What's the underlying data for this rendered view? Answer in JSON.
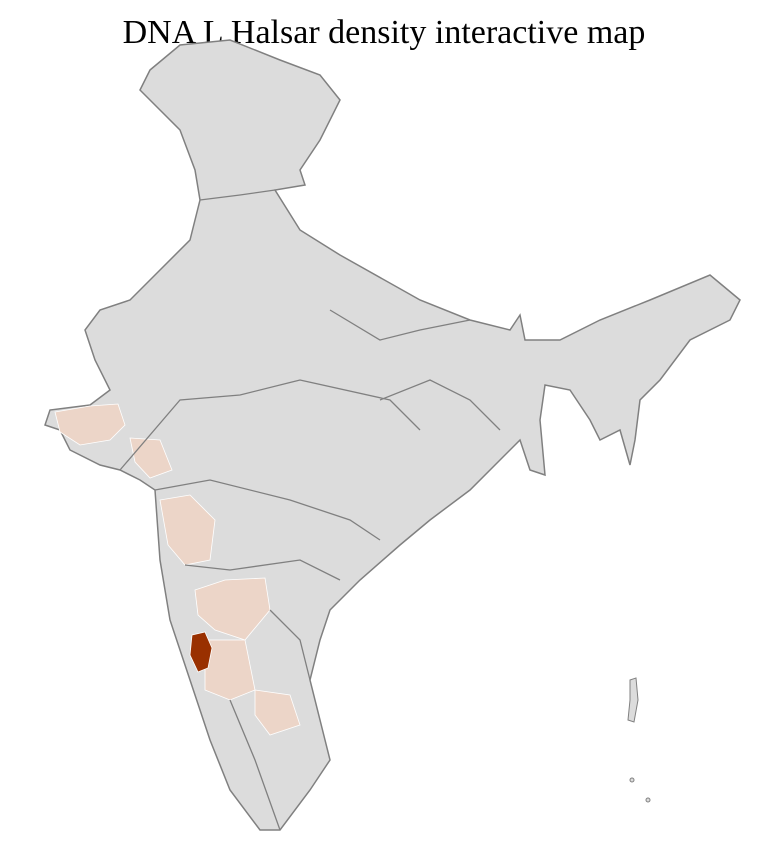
{
  "title": "DNA L Halsar density interactive map",
  "colors": {
    "no_data": "#dcdcdc",
    "low_density": "#ecd5c8",
    "high_density": "#993000",
    "district_border": "#ffffff",
    "state_border": "#808080"
  },
  "regions": [
    {
      "name": "kutch",
      "level": "low"
    },
    {
      "name": "north-gujarat",
      "level": "low"
    },
    {
      "name": "konkan-maharashtra",
      "level": "low"
    },
    {
      "name": "north-karnataka",
      "level": "low"
    },
    {
      "name": "coastal-karnataka",
      "level": "high"
    },
    {
      "name": "south-karnataka",
      "level": "low"
    },
    {
      "name": "tamil-nadu-west",
      "level": "low"
    }
  ]
}
